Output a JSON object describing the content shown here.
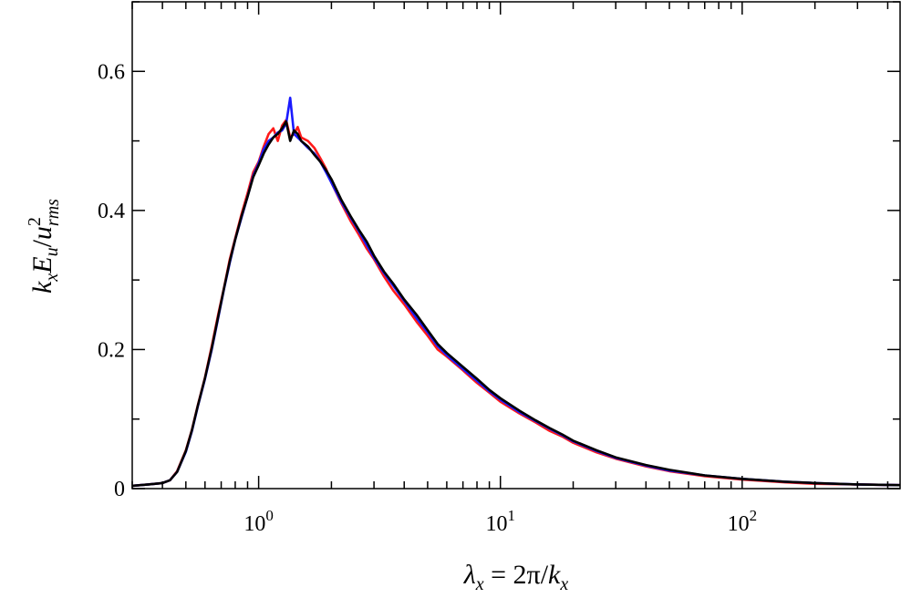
{
  "chart_data": {
    "type": "line",
    "xscale": "log",
    "xlim": [
      0.3,
      450
    ],
    "ylim": [
      0,
      0.7
    ],
    "grid": false,
    "legend": "none",
    "xlabel": {
      "lambda": "λ",
      "lambda_sub": "x",
      "equals": " = 2π/",
      "k": "k",
      "k_sub": "x"
    },
    "ylabel": {
      "k": "k",
      "k_sub": "x",
      "E": "E",
      "E_sub": "u",
      "slash": "/",
      "u": "u",
      "u_sup": "2",
      "u_sub": "rms"
    },
    "x_ticks": [
      {
        "value": 1,
        "base": "10",
        "exp": "0"
      },
      {
        "value": 10,
        "base": "10",
        "exp": "1"
      },
      {
        "value": 100,
        "base": "10",
        "exp": "2"
      }
    ],
    "y_ticks": [
      {
        "value": 0,
        "label": "0"
      },
      {
        "value": 0.2,
        "label": "0.2"
      },
      {
        "value": 0.4,
        "label": "0.4"
      },
      {
        "value": 0.6,
        "label": "0.6"
      }
    ],
    "series": [
      {
        "color": "#ff1a1a",
        "x": [
          0.3,
          0.35,
          0.4,
          0.43,
          0.46,
          0.5,
          0.53,
          0.56,
          0.6,
          0.64,
          0.68,
          0.72,
          0.76,
          0.8,
          0.85,
          0.9,
          0.95,
          1.0,
          1.05,
          1.1,
          1.15,
          1.2,
          1.25,
          1.3,
          1.35,
          1.4,
          1.45,
          1.5,
          1.6,
          1.7,
          1.8,
          1.9,
          2.0,
          2.2,
          2.4,
          2.6,
          2.8,
          3.0,
          3.3,
          3.6,
          4.0,
          4.5,
          5.0,
          5.5,
          6.0,
          7.0,
          8.0,
          9.0,
          10,
          12,
          14,
          16,
          18,
          20,
          25,
          30,
          40,
          50,
          70,
          100,
          150,
          200,
          300,
          450
        ],
        "y": [
          0.004,
          0.006,
          0.008,
          0.012,
          0.025,
          0.055,
          0.085,
          0.12,
          0.16,
          0.205,
          0.25,
          0.29,
          0.33,
          0.36,
          0.395,
          0.425,
          0.455,
          0.47,
          0.492,
          0.51,
          0.518,
          0.5,
          0.522,
          0.53,
          0.505,
          0.51,
          0.52,
          0.505,
          0.5,
          0.49,
          0.475,
          0.46,
          0.44,
          0.41,
          0.385,
          0.365,
          0.345,
          0.33,
          0.305,
          0.285,
          0.265,
          0.24,
          0.22,
          0.2,
          0.19,
          0.17,
          0.152,
          0.138,
          0.125,
          0.108,
          0.095,
          0.083,
          0.075,
          0.066,
          0.052,
          0.043,
          0.032,
          0.025,
          0.018,
          0.013,
          0.009,
          0.007,
          0.006,
          0.005
        ]
      },
      {
        "color": "#1a1aff",
        "x": [
          0.3,
          0.35,
          0.4,
          0.43,
          0.46,
          0.5,
          0.53,
          0.56,
          0.6,
          0.64,
          0.68,
          0.72,
          0.76,
          0.8,
          0.85,
          0.9,
          0.95,
          1.0,
          1.05,
          1.1,
          1.15,
          1.2,
          1.25,
          1.3,
          1.35,
          1.4,
          1.45,
          1.5,
          1.6,
          1.7,
          1.8,
          1.9,
          2.0,
          2.2,
          2.4,
          2.6,
          2.8,
          3.0,
          3.3,
          3.6,
          4.0,
          4.5,
          5.0,
          5.5,
          6.0,
          7.0,
          8.0,
          9.0,
          10,
          12,
          14,
          16,
          18,
          20,
          25,
          30,
          40,
          50,
          70,
          100,
          150,
          200,
          300,
          450
        ],
        "y": [
          0.004,
          0.006,
          0.008,
          0.012,
          0.024,
          0.053,
          0.083,
          0.118,
          0.158,
          0.2,
          0.245,
          0.288,
          0.325,
          0.358,
          0.39,
          0.42,
          0.45,
          0.468,
          0.488,
          0.5,
          0.505,
          0.512,
          0.515,
          0.525,
          0.562,
          0.51,
          0.505,
          0.5,
          0.49,
          0.482,
          0.47,
          0.455,
          0.44,
          0.412,
          0.39,
          0.37,
          0.35,
          0.332,
          0.31,
          0.292,
          0.27,
          0.245,
          0.225,
          0.205,
          0.192,
          0.172,
          0.155,
          0.14,
          0.128,
          0.11,
          0.097,
          0.086,
          0.077,
          0.068,
          0.054,
          0.044,
          0.033,
          0.026,
          0.019,
          0.014,
          0.01,
          0.008,
          0.006,
          0.005
        ]
      },
      {
        "color": "#000000",
        "x": [
          0.3,
          0.35,
          0.4,
          0.43,
          0.46,
          0.5,
          0.53,
          0.56,
          0.6,
          0.64,
          0.68,
          0.72,
          0.76,
          0.8,
          0.85,
          0.9,
          0.95,
          1.0,
          1.05,
          1.1,
          1.15,
          1.2,
          1.25,
          1.3,
          1.35,
          1.4,
          1.45,
          1.5,
          1.6,
          1.7,
          1.8,
          1.9,
          2.0,
          2.2,
          2.4,
          2.6,
          2.8,
          3.0,
          3.3,
          3.6,
          4.0,
          4.5,
          5.0,
          5.5,
          6.0,
          7.0,
          8.0,
          9.0,
          10,
          12,
          14,
          16,
          18,
          20,
          25,
          30,
          40,
          50,
          70,
          100,
          150,
          200,
          300,
          450
        ],
        "y": [
          0.004,
          0.006,
          0.008,
          0.012,
          0.024,
          0.054,
          0.084,
          0.119,
          0.159,
          0.202,
          0.247,
          0.289,
          0.327,
          0.358,
          0.392,
          0.42,
          0.448,
          0.465,
          0.482,
          0.495,
          0.505,
          0.51,
          0.518,
          0.528,
          0.5,
          0.515,
          0.51,
          0.5,
          0.492,
          0.48,
          0.47,
          0.458,
          0.445,
          0.415,
          0.392,
          0.372,
          0.355,
          0.335,
          0.312,
          0.295,
          0.272,
          0.25,
          0.228,
          0.208,
          0.195,
          0.175,
          0.158,
          0.142,
          0.13,
          0.112,
          0.098,
          0.087,
          0.078,
          0.069,
          0.055,
          0.045,
          0.034,
          0.027,
          0.019,
          0.014,
          0.01,
          0.008,
          0.006,
          0.005
        ]
      }
    ]
  }
}
